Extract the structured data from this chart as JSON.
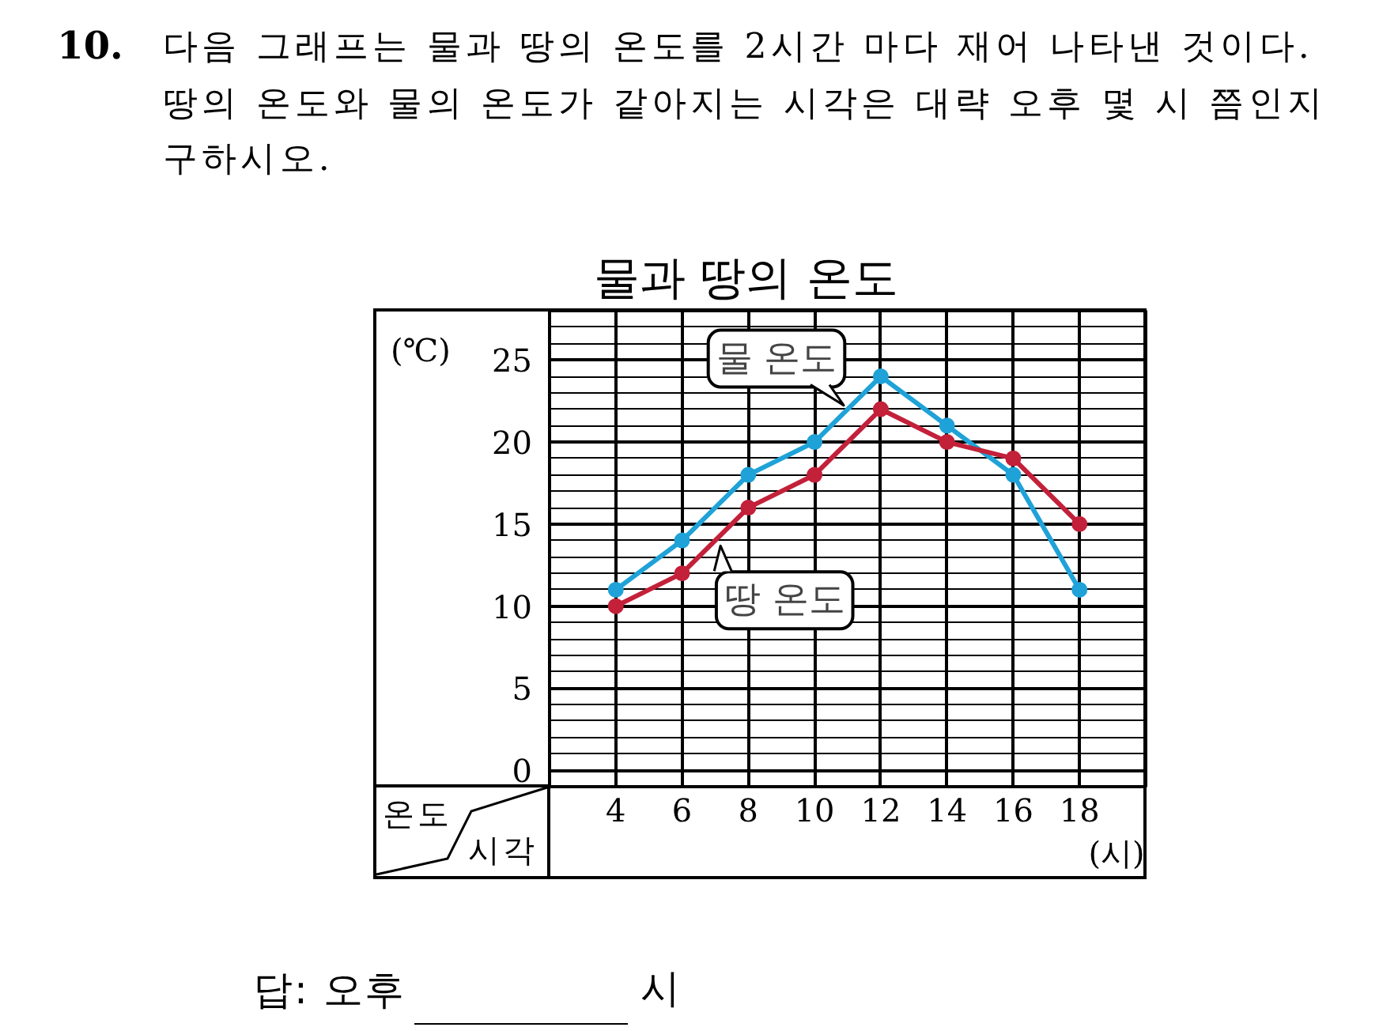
{
  "chart_data": {
    "type": "line",
    "title": "물과 땅의 온도",
    "xlabel": "(시)",
    "ylabel": "(℃)",
    "x": [
      4,
      6,
      8,
      10,
      12,
      14,
      16,
      18
    ],
    "series": [
      {
        "name": "물 온도",
        "color": "#1fa2d8",
        "values": [
          11,
          14,
          18,
          20,
          24,
          21,
          18,
          11
        ]
      },
      {
        "name": "땅 온도",
        "color": "#c3203a",
        "values": [
          10,
          12,
          16,
          18,
          22,
          20,
          19,
          15
        ]
      }
    ],
    "xlim": [
      2,
      20
    ],
    "ylim": [
      -1,
      28
    ],
    "xticks": [
      4,
      6,
      8,
      10,
      12,
      14,
      16,
      18
    ],
    "yticks": [
      0,
      {
        "value": 1,
        "label": null
      },
      {
        "value": 2,
        "label": null
      },
      {
        "value": 3,
        "label": null
      },
      {
        "value": 4,
        "label": null
      },
      5,
      {
        "value": 6,
        "label": null
      },
      {
        "value": 7,
        "label": null
      },
      {
        "value": 8,
        "label": null
      },
      {
        "value": 9,
        "label": null
      },
      10,
      {
        "value": 11,
        "label": null
      },
      {
        "value": 12,
        "label": null
      },
      {
        "value": 13,
        "label": null
      },
      {
        "value": 14,
        "label": null
      },
      15,
      {
        "value": 16,
        "label": null
      },
      {
        "value": 17,
        "label": null
      },
      {
        "value": 18,
        "label": null
      },
      {
        "value": 19,
        "label": null
      },
      20,
      {
        "value": 21,
        "label": null
      },
      {
        "value": 22,
        "label": null
      },
      {
        "value": 23,
        "label": null
      },
      {
        "value": 24,
        "label": null
      },
      25,
      {
        "value": 26,
        "label": null
      },
      {
        "value": 27,
        "label": null
      }
    ],
    "grid": true,
    "marker": "circle",
    "line_style": "solid",
    "annotations": [
      "10.",
      "다음 그래프는 물과 땅의 온도를 2시간 마다 재어 나타낸 것이다.",
      "땅의 온도와 물의 온도가 같아지는 시각은 대략 오후 몇 시 쯤인지",
      "구하시오.",
      "온도",
      "시각",
      "답: 오후",
      "시"
    ]
  }
}
